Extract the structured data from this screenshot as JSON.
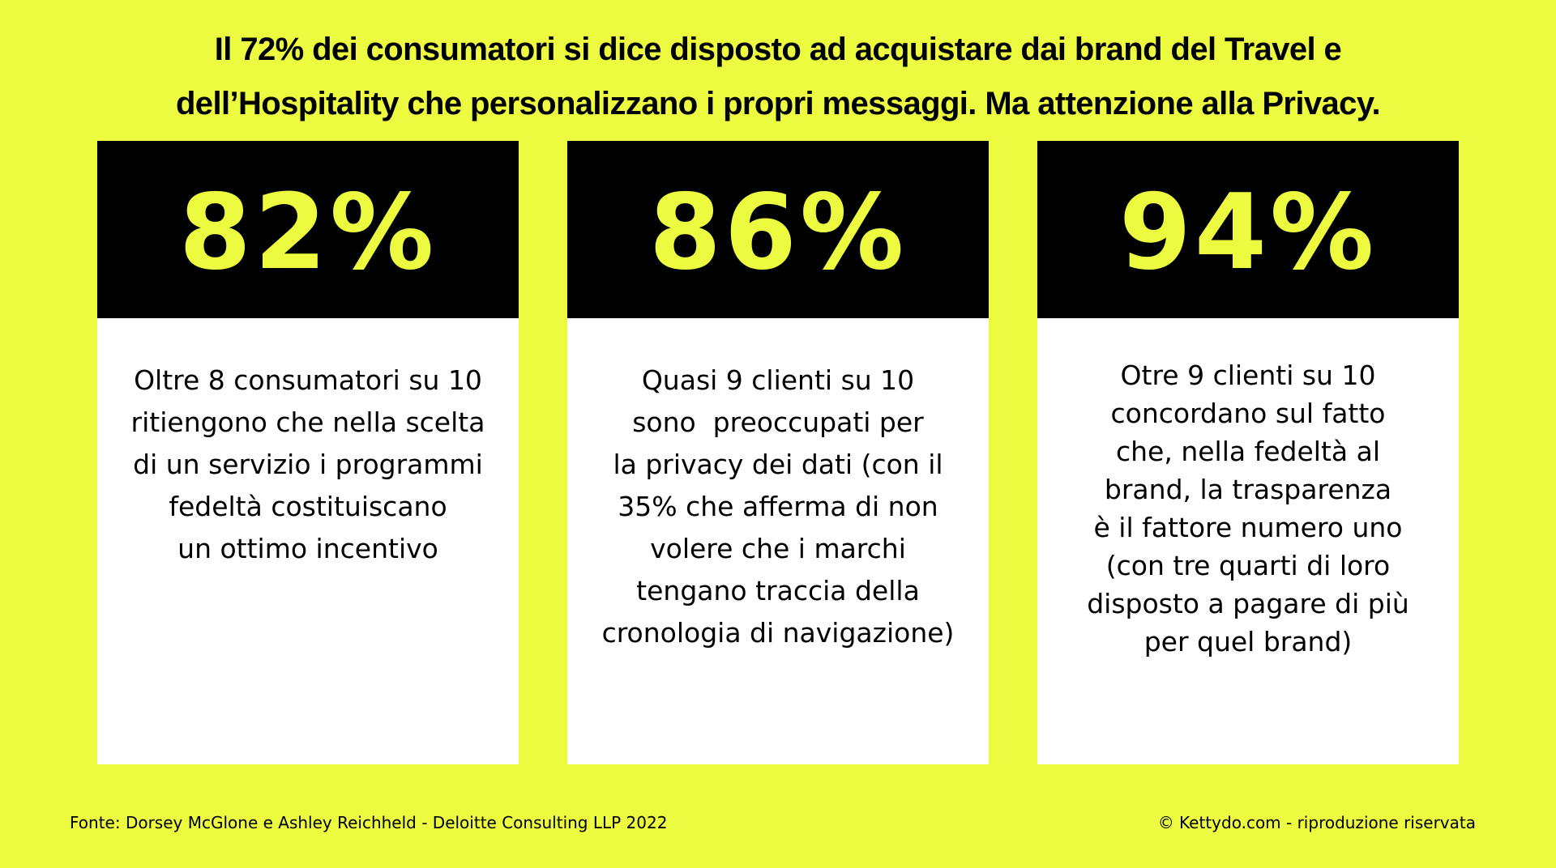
{
  "title": {
    "line1": "Il 72% dei consumatori si dice disposto ad acquistare dai brand del Travel e",
    "line2": "dell’Hospitality che personalizzano i propri messaggi. Ma attenzione alla Privacy."
  },
  "cards": [
    {
      "percent": "82%",
      "lines": [
        "Oltre 8 consumatori su 10",
        "ritiengono che nella scelta",
        "di un servizio i programmi",
        "fedeltà costituiscano",
        "un ottimo incentivo"
      ]
    },
    {
      "percent": "86%",
      "lines": [
        "Quasi 9 clienti su 10",
        "sono  preoccupati per",
        "la privacy dei dati (con il",
        "35% che afferma di non",
        "volere che i marchi",
        "tengano traccia della",
        "cronologia di navigazione)"
      ]
    },
    {
      "percent": "94%",
      "lines": [
        "Otre 9 clienti su 10",
        "concordano sul fatto",
        "che, nella fedeltà al",
        "brand, la trasparenza",
        "è il fattore numero uno",
        "(con tre quarti di loro",
        "disposto a pagare di più",
        "per quel brand)"
      ]
    }
  ],
  "footer": {
    "source": "Fonte: Dorsey McGlone e Ashley Reichheld - Deloitte Consulting LLP 2022",
    "copyright": "© Kettydo.com - riproduzione riservata"
  },
  "colors": {
    "background": "#ecfb3f",
    "card_header": "#000000",
    "card_body": "#ffffff",
    "accent_text": "#ecfb3f"
  }
}
